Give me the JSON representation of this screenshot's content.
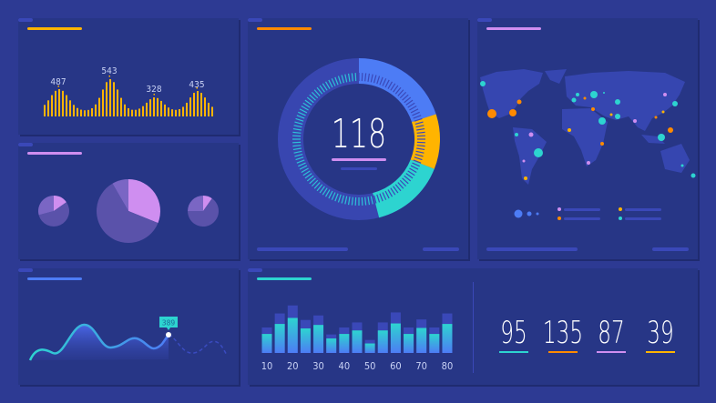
{
  "colors": {
    "yellow": "#ffb400",
    "orange": "#ff8a00",
    "purple": "#cf8ef0",
    "teal": "#2dd4d0",
    "blue": "#4d7cf5"
  },
  "panels": {
    "wave_bars": {
      "accent": "#ffb400",
      "peaks": [
        {
          "label": "487"
        },
        {
          "label": "543"
        },
        {
          "label": "328"
        },
        {
          "label": "435"
        }
      ]
    },
    "pies": {
      "accent": "#cf8ef0"
    },
    "donut": {
      "accent": "#ff8a00",
      "value": "118",
      "segments": [
        {
          "color": "#4d7cf5",
          "percent": 20
        },
        {
          "color": "#ffb400",
          "percent": 11
        },
        {
          "color": "#2dd4d0",
          "percent": 15
        }
      ]
    },
    "map": {
      "accent": "#cf8ef0"
    },
    "line": {
      "accent": "#4d7cf5",
      "tooltip": "389"
    },
    "bars": {
      "accent": "#2dd4d0",
      "x_labels": [
        "10",
        "20",
        "30",
        "40",
        "50",
        "60",
        "70",
        "80"
      ],
      "front": [
        38,
        58,
        70,
        49,
        56,
        29,
        38,
        45,
        19,
        45,
        59,
        38,
        50,
        38,
        58
      ],
      "back": [
        51,
        79,
        95,
        66,
        75,
        37,
        51,
        61,
        26,
        61,
        81,
        51,
        67,
        51,
        79
      ]
    },
    "stats": [
      {
        "value": "95",
        "color": "#2dd4d0"
      },
      {
        "value": "135",
        "color": "#ff8a00"
      },
      {
        "value": "87",
        "color": "#cf8ef0"
      },
      {
        "value": "39",
        "color": "#ffb400"
      }
    ]
  }
}
